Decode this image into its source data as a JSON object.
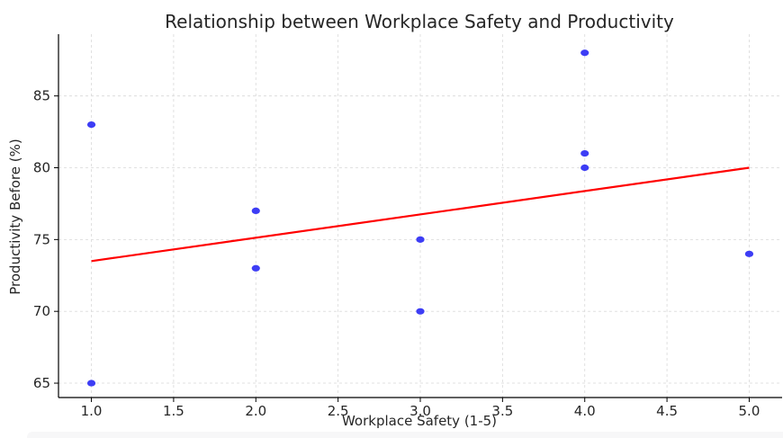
{
  "chart_data": {
    "type": "scatter",
    "title": "Relationship between Workplace Safety and Productivity",
    "xlabel": "Workplace Safety (1-5)",
    "ylabel": "Productivity Before (%)",
    "xlim": [
      0.8,
      5.2
    ],
    "ylim": [
      64.0,
      89.3
    ],
    "xticks": [
      "1.0",
      "1.5",
      "2.0",
      "2.5",
      "3.0",
      "3.5",
      "4.0",
      "4.5",
      "5.0"
    ],
    "yticks": [
      "65",
      "70",
      "75",
      "80",
      "85"
    ],
    "grid": true,
    "points": [
      {
        "x": 1,
        "y": 83
      },
      {
        "x": 1,
        "y": 65
      },
      {
        "x": 2,
        "y": 77
      },
      {
        "x": 2,
        "y": 73
      },
      {
        "x": 3,
        "y": 75
      },
      {
        "x": 3,
        "y": 70
      },
      {
        "x": 4,
        "y": 88
      },
      {
        "x": 4,
        "y": 81
      },
      {
        "x": 4,
        "y": 80
      },
      {
        "x": 5,
        "y": 74
      }
    ],
    "trendline": {
      "x": [
        1,
        5
      ],
      "y": [
        73.5,
        80.0
      ]
    },
    "colors": {
      "points": "#3d3df5",
      "trendline": "#ff0000",
      "grid": "#d9d9d9",
      "axis": "#000000"
    }
  }
}
